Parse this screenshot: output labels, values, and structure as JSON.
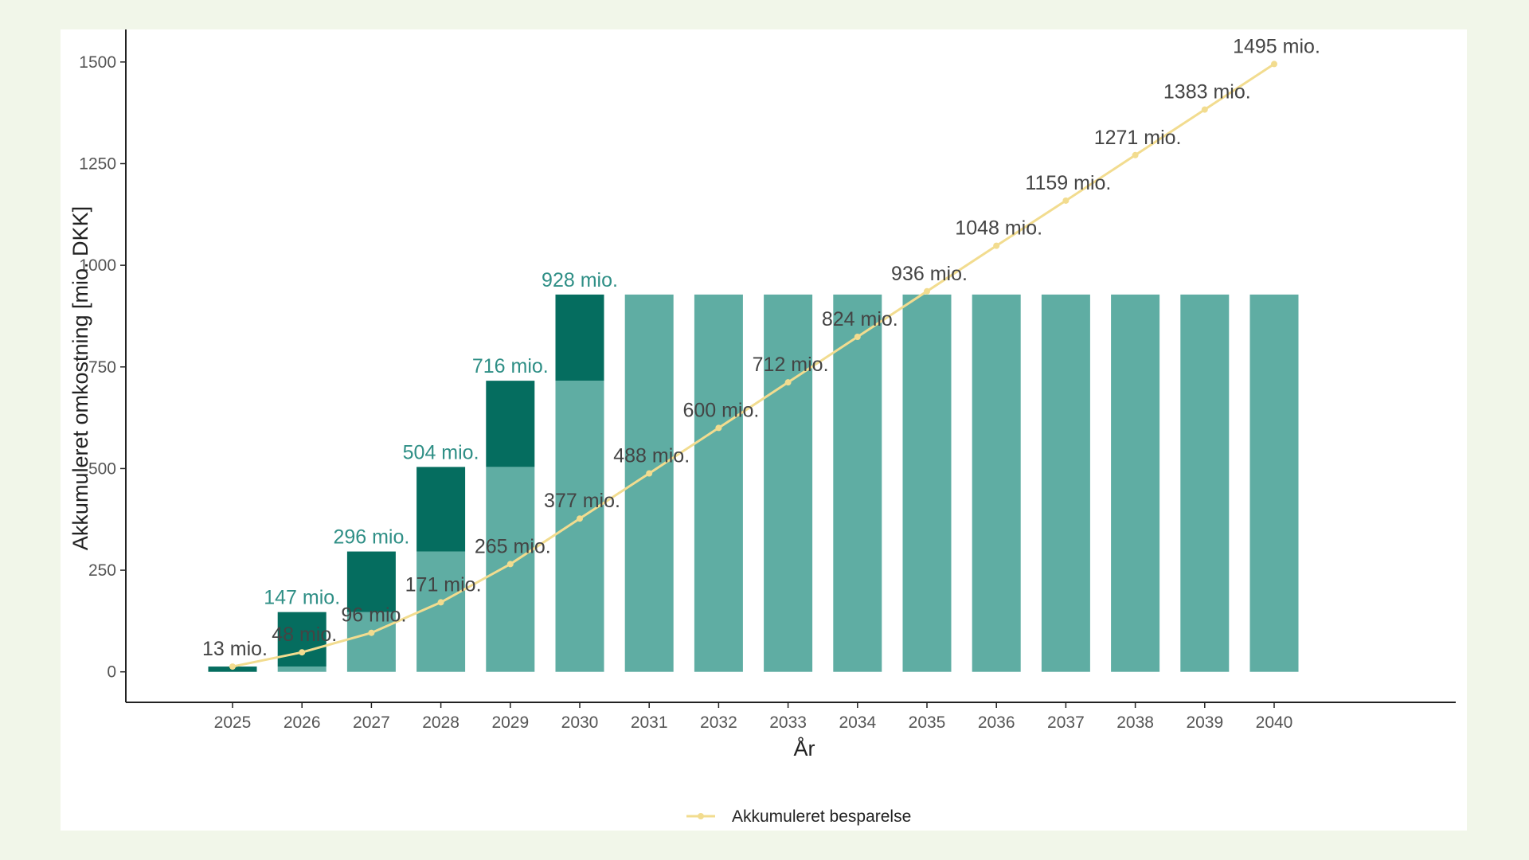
{
  "colors": {
    "page_background": "#f1f6e9",
    "panel_background": "#ffffff",
    "bar_base": "#5fada3",
    "bar_increment": "#056d5f",
    "cost_label": "#2f8f86",
    "savings_line": "#f2dc8f",
    "savings_label": "#444444",
    "axis": "#222222"
  },
  "chart_data": {
    "type": "bar",
    "categories": [
      "2025",
      "2026",
      "2027",
      "2028",
      "2029",
      "2030",
      "2031",
      "2032",
      "2033",
      "2034",
      "2035",
      "2036",
      "2037",
      "2038",
      "2039",
      "2040"
    ],
    "xlabel": "År",
    "ylabel": "Akkumuleret omkostning [mio. DKK]",
    "ylim": [
      -75,
      1580
    ],
    "yticks": [
      0,
      250,
      500,
      750,
      1000,
      1250,
      1500
    ],
    "grid": false,
    "legend_position": "bottom",
    "series": [
      {
        "type": "bar",
        "values": [
          13,
          147,
          296,
          504,
          716,
          928,
          928,
          928,
          928,
          928,
          928,
          928,
          928,
          928,
          928,
          928
        ],
        "labels": [
          "",
          "147 mio.",
          "296 mio.",
          "504 mio.",
          "716 mio.",
          "928 mio.",
          "",
          "",
          "",
          "",
          "",
          "",
          "",
          "",
          "",
          ""
        ]
      },
      {
        "type": "line",
        "name": "Akkumuleret besparelse",
        "values": [
          13,
          48,
          96,
          171,
          265,
          377,
          488,
          600,
          712,
          824,
          936,
          1048,
          1159,
          1271,
          1383,
          1495
        ],
        "labels": [
          "13 mio.",
          "48 mio.",
          "96 mio.",
          "171 mio.",
          "265 mio.",
          "377 mio.",
          "488 mio.",
          "600 mio.",
          "712 mio.",
          "824 mio.",
          "936 mio.",
          "1048 mio.",
          "1159 mio.",
          "1271 mio.",
          "1383 mio.",
          "1495 mio."
        ]
      }
    ]
  }
}
